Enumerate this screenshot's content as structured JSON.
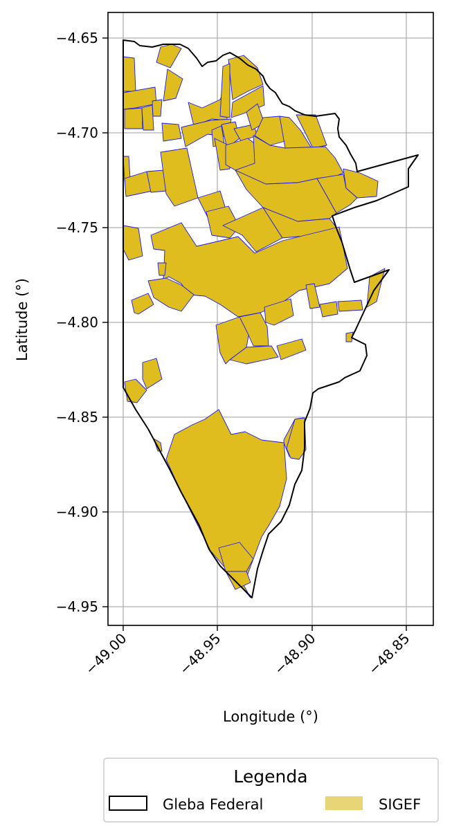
{
  "map": {
    "xlabel": "Longitude (°)",
    "ylabel": "Latitude (°)",
    "xticks": [
      {
        "value": -49.0,
        "label": "−49.00"
      },
      {
        "value": -48.95,
        "label": "−48.95"
      },
      {
        "value": -48.9,
        "label": "−48.90"
      },
      {
        "value": -48.85,
        "label": "−48.85"
      }
    ],
    "yticks": [
      {
        "value": -4.65,
        "label": "−4.65"
      },
      {
        "value": -4.7,
        "label": "−4.70"
      },
      {
        "value": -4.75,
        "label": "−4.75"
      },
      {
        "value": -4.8,
        "label": "−4.80"
      },
      {
        "value": -4.85,
        "label": "−4.85"
      },
      {
        "value": -4.9,
        "label": "−4.90"
      },
      {
        "value": -4.95,
        "label": "−4.95"
      }
    ],
    "xlim": [
      -49.008,
      -48.82
    ],
    "ylim": [
      -4.96,
      -4.636
    ],
    "grid": true,
    "colors": {
      "sigef_fill": "#dfbd1f",
      "sigef_edge": "#1a1aee",
      "gleba_edge": "#000000",
      "legend_sigef_swatch": "#e8d576",
      "grid": "#b0b0b0"
    },
    "legend": {
      "title": "Legenda",
      "placement": "bottom, below plot",
      "items": [
        {
          "label": "Gleba Federal",
          "style": "outline"
        },
        {
          "label": "SIGEF",
          "style": "filled"
        }
      ]
    }
  }
}
